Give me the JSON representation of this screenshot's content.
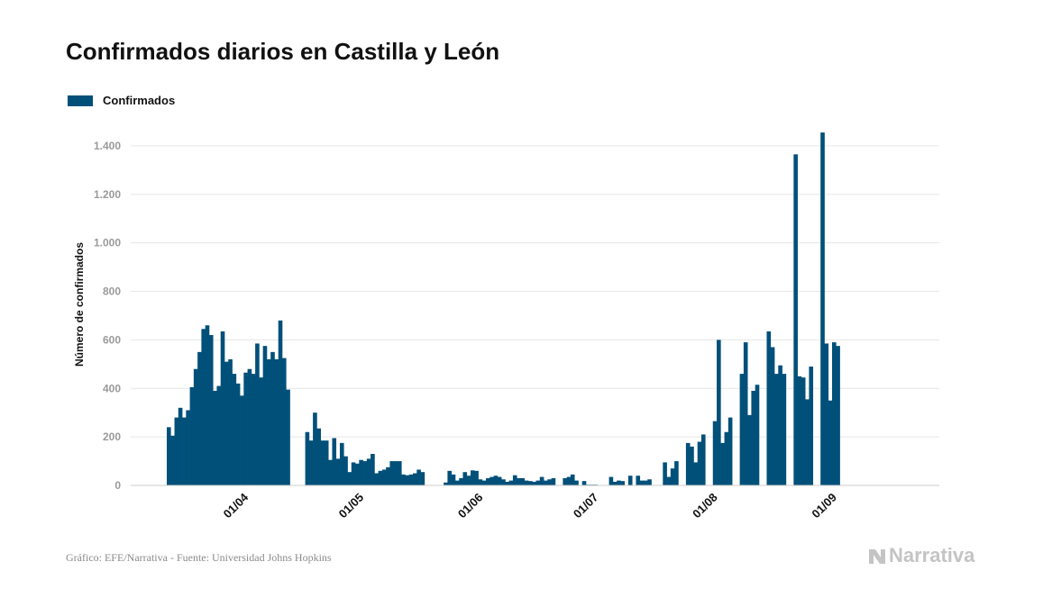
{
  "header": {
    "title": "Confirmados diarios en Castilla y León"
  },
  "legend": {
    "label": "Confirmados",
    "color": "#00507a"
  },
  "footer": {
    "source": "Gráfico: EFE/Narrativa - Fuente: Universidad Johns Hopkins"
  },
  "brand": {
    "name": "Narrativa"
  },
  "chart_data": {
    "type": "bar",
    "title": "Confirmados diarios en Castilla y León",
    "xlabel": "",
    "ylabel": "Número de confirmados",
    "ylim": [
      0,
      1500
    ],
    "yticks": [
      0,
      200,
      400,
      600,
      800,
      1000,
      1200,
      1400
    ],
    "ytick_labels": [
      "0",
      "200",
      "400",
      "600",
      "800",
      "1.000",
      "1.200",
      "1.400"
    ],
    "grid": true,
    "legend_position": "top-left",
    "bar_color": "#00507a",
    "x_start": "2020-03-13",
    "x_end": "2020-09-16",
    "xtick_dates": [
      "2020-04-01",
      "2020-05-01",
      "2020-06-01",
      "2020-07-01",
      "2020-08-01",
      "2020-09-01"
    ],
    "xtick_labels": [
      "01/04",
      "01/05",
      "01/06",
      "01/07",
      "01/08",
      "01/09"
    ],
    "series": [
      {
        "name": "Confirmados",
        "start_date": "2020-03-13",
        "values": [
          240,
          205,
          280,
          320,
          280,
          310,
          405,
          480,
          550,
          645,
          660,
          620,
          390,
          410,
          635,
          510,
          520,
          460,
          420,
          370,
          465,
          480,
          460,
          585,
          445,
          575,
          520,
          550,
          520,
          680,
          525,
          395,
          null,
          null,
          null,
          null,
          220,
          185,
          300,
          235,
          185,
          185,
          105,
          195,
          110,
          175,
          120,
          55,
          95,
          90,
          105,
          100,
          110,
          130,
          50,
          60,
          65,
          75,
          100,
          100,
          100,
          45,
          42,
          45,
          50,
          65,
          55,
          null,
          null,
          null,
          null,
          null,
          12,
          60,
          45,
          20,
          30,
          55,
          40,
          62,
          60,
          25,
          20,
          30,
          35,
          40,
          35,
          25,
          15,
          20,
          42,
          30,
          30,
          20,
          18,
          15,
          20,
          35,
          20,
          25,
          30,
          null,
          null,
          30,
          35,
          45,
          20,
          null,
          18,
          3,
          3,
          3,
          null,
          null,
          null,
          35,
          15,
          20,
          18,
          null,
          40,
          null,
          40,
          20,
          20,
          25,
          null,
          null,
          null,
          95,
          35,
          70,
          100,
          null,
          null,
          175,
          160,
          95,
          180,
          210,
          null,
          null,
          265,
          600,
          175,
          220,
          280,
          null,
          null,
          460,
          590,
          290,
          390,
          415,
          null,
          null,
          635,
          570,
          460,
          495,
          460,
          null,
          null,
          1365,
          450,
          445,
          355,
          490,
          null,
          null,
          1455,
          585,
          350,
          590,
          575
        ]
      }
    ]
  }
}
